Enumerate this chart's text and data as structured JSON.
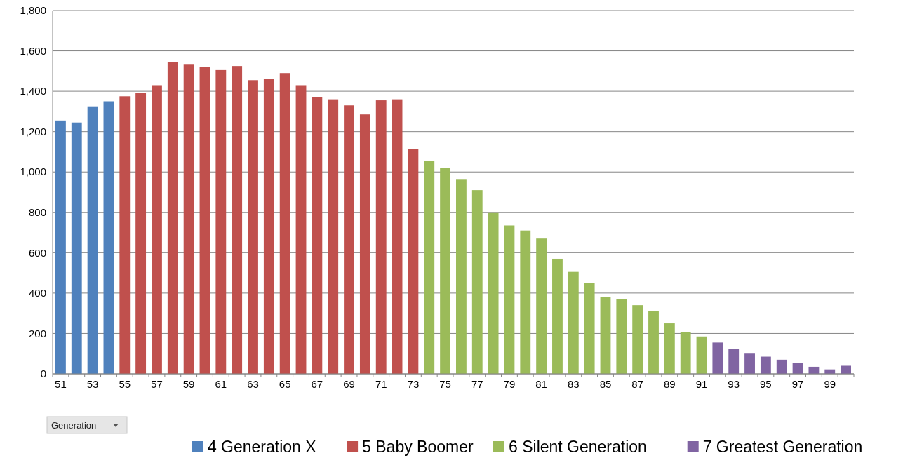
{
  "chart_data": {
    "type": "bar",
    "grid": "y",
    "legend": "bottom",
    "categories": [
      "51",
      null,
      "53",
      null,
      "55",
      null,
      "57",
      null,
      "59",
      null,
      "61",
      null,
      "63",
      null,
      "65",
      null,
      "67",
      null,
      "69",
      null,
      "71",
      null,
      "73",
      null,
      "75",
      null,
      "77",
      null,
      "79",
      null,
      "81",
      null,
      "83",
      null,
      "85",
      null,
      "87",
      null,
      "89",
      null,
      "91",
      null,
      "93",
      null,
      "95",
      null,
      "97",
      null,
      "99",
      null
    ],
    "ylim": [
      0,
      1800
    ],
    "yticks": [
      0,
      {
        "value": 200,
        "label": "200"
      },
      {
        "value": 400,
        "label": "400"
      },
      {
        "value": 600,
        "label": "600"
      },
      {
        "value": 800,
        "label": "800"
      },
      {
        "value": 1000,
        "label": "1,000"
      },
      {
        "value": 1200,
        "label": "1,200"
      },
      {
        "value": 1400,
        "label": "1,400"
      },
      {
        "value": 1600,
        "label": "1,600"
      },
      {
        "value": 1800,
        "label": "1,800"
      }
    ],
    "annotations": [
      "Generation"
    ],
    "series": [
      {
        "name": "4 Generation X",
        "color": "#4f81bd",
        "values": [
          1255,
          1245,
          1325,
          1350,
          null,
          null,
          null,
          null,
          null,
          null,
          null,
          null,
          null,
          null,
          null,
          null,
          null,
          null,
          null,
          null,
          null,
          null,
          null,
          null,
          null,
          null,
          null,
          null,
          null,
          null,
          null,
          null,
          null,
          null,
          null,
          null,
          null,
          null,
          null,
          null,
          null,
          null,
          null,
          null,
          null,
          null,
          null,
          null,
          null,
          null
        ]
      },
      {
        "name": "5 Baby Boomer",
        "color": "#c0504d",
        "values": [
          null,
          null,
          null,
          null,
          1375,
          1390,
          1430,
          1545,
          1535,
          1520,
          1505,
          1525,
          1455,
          1460,
          1490,
          1430,
          1370,
          1360,
          1330,
          1285,
          1355,
          1360,
          1115,
          null,
          null,
          null,
          null,
          null,
          null,
          null,
          null,
          null,
          null,
          null,
          null,
          null,
          null,
          null,
          null,
          null,
          null,
          null,
          null,
          null,
          null,
          null,
          null,
          null,
          null,
          null
        ]
      },
      {
        "name": "6 Silent Generation",
        "color": "#9bbb59",
        "values": [
          null,
          null,
          null,
          null,
          null,
          null,
          null,
          null,
          null,
          null,
          null,
          null,
          null,
          null,
          null,
          null,
          null,
          null,
          null,
          null,
          null,
          null,
          null,
          1055,
          1020,
          965,
          910,
          800,
          735,
          710,
          670,
          570,
          505,
          450,
          380,
          370,
          340,
          310,
          250,
          205,
          185,
          null,
          null,
          null,
          null,
          null,
          null,
          null,
          null,
          null
        ]
      },
      {
        "name": "7 Greatest Generation",
        "color": "#8064a2",
        "values": [
          null,
          null,
          null,
          null,
          null,
          null,
          null,
          null,
          null,
          null,
          null,
          null,
          null,
          null,
          null,
          null,
          null,
          null,
          null,
          null,
          null,
          null,
          null,
          null,
          null,
          null,
          null,
          null,
          null,
          null,
          null,
          null,
          null,
          null,
          null,
          null,
          null,
          null,
          null,
          null,
          null,
          155,
          125,
          100,
          85,
          70,
          55,
          35,
          22,
          40
        ]
      }
    ]
  }
}
